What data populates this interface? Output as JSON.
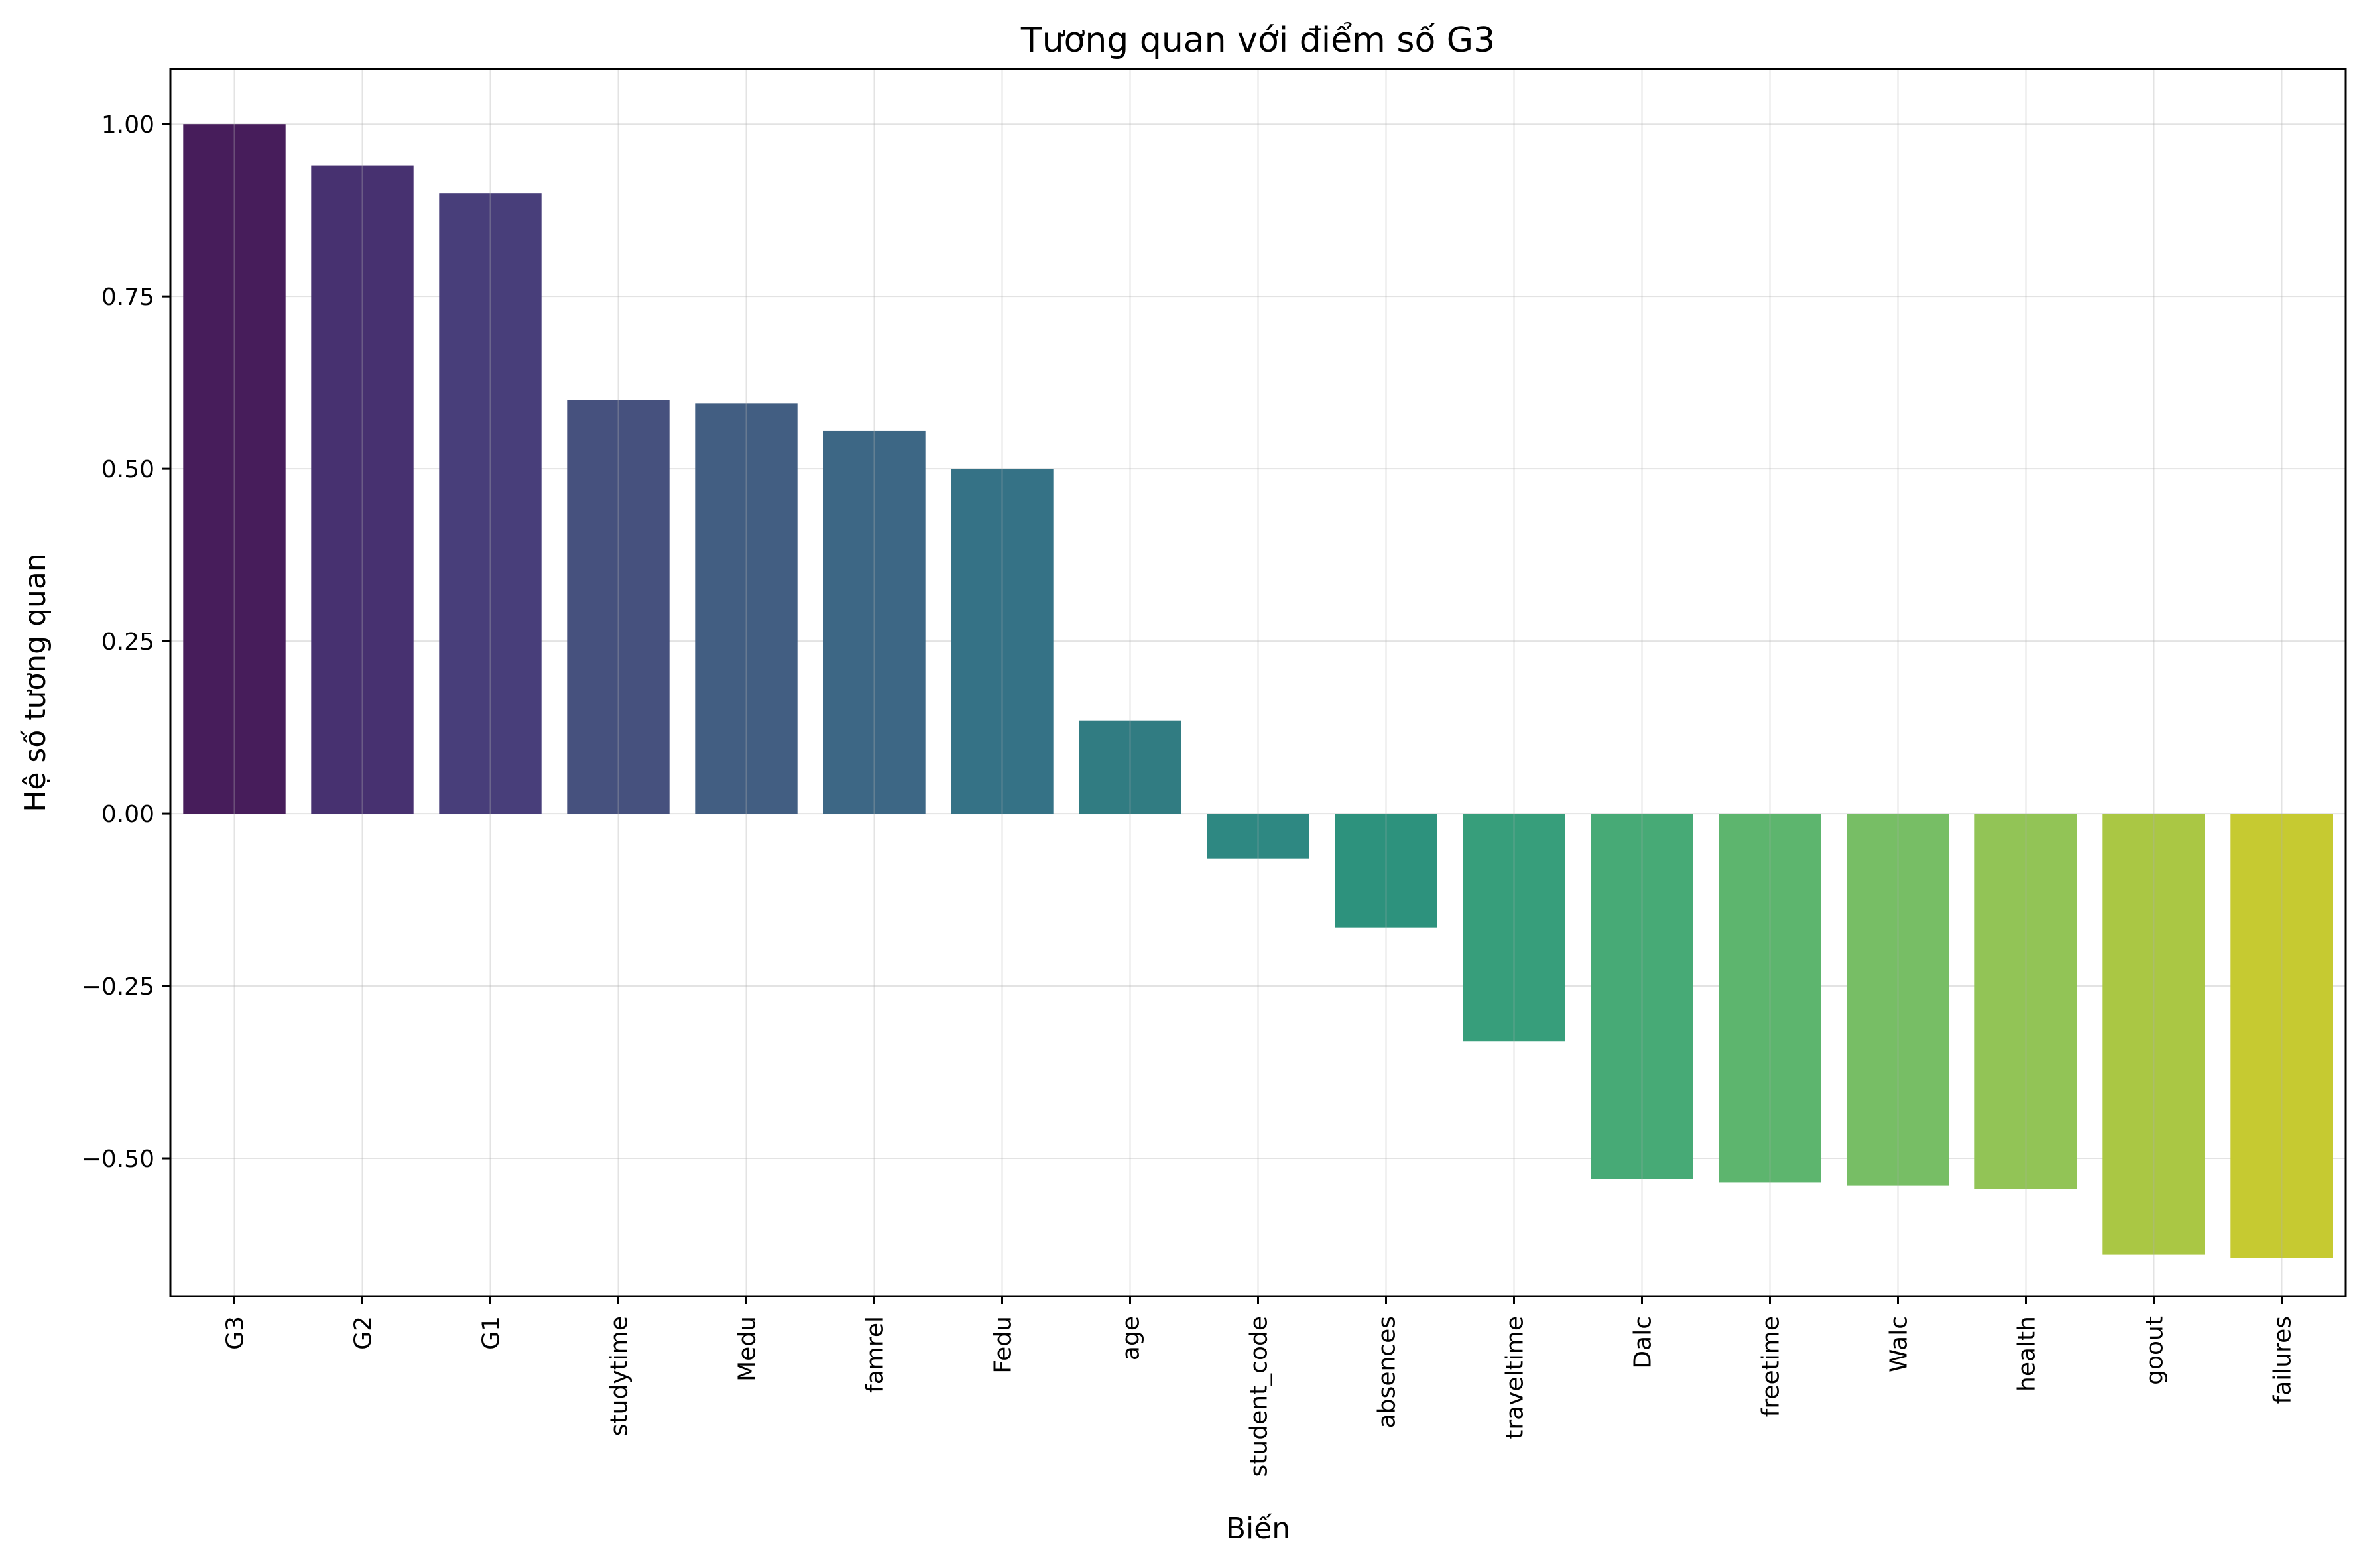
{
  "chart_data": {
    "type": "bar",
    "title": "Tương quan với điểm số G3",
    "xlabel": "Biến",
    "ylabel": "Hệ số tương quan",
    "categories": [
      "G3",
      "G2",
      "G1",
      "studytime",
      "Medu",
      "famrel",
      "Fedu",
      "age",
      "student_code",
      "absences",
      "traveltime",
      "Dalc",
      "freetime",
      "Walc",
      "health",
      "goout",
      "failures"
    ],
    "values": [
      1.0,
      0.94,
      0.9,
      0.6,
      0.595,
      0.555,
      0.5,
      0.135,
      -0.065,
      -0.165,
      -0.33,
      -0.53,
      -0.535,
      -0.54,
      -0.545,
      -0.64,
      -0.645
    ],
    "ylim": [
      -0.7,
      1.08
    ],
    "yticks": [
      1.0,
      0.75,
      0.5,
      0.25,
      0.0,
      -0.25,
      -0.5
    ],
    "ytick_labels": [
      "1.00",
      "0.75",
      "0.50",
      "0.25",
      "0.00",
      "−0.25",
      "−0.50"
    ],
    "grid": true,
    "colors": [
      "#471d5b",
      "#473170",
      "#483e7a",
      "#46517e",
      "#425e82",
      "#3d6785",
      "#357286",
      "#317c82",
      "#2e8882",
      "#2d927d",
      "#379e7b",
      "#47aa76",
      "#5db56e",
      "#77be65",
      "#92c456",
      "#aac744",
      "#c6ca31"
    ]
  }
}
